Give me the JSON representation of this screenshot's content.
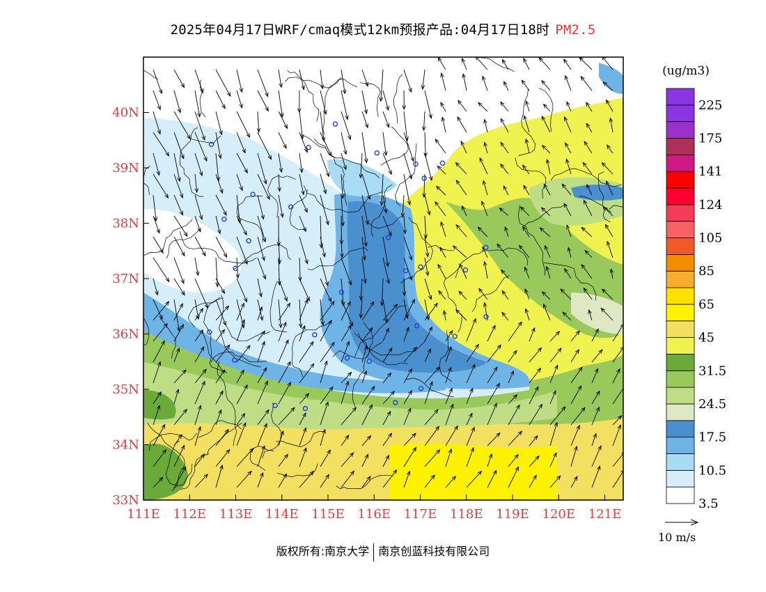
{
  "title": {
    "main": "2025年04月17日WRF/cmaq模式12km预报产品:04月17日18时",
    "pollutant": "PM2.5"
  },
  "colorbar": {
    "unit": "(ug/m3)",
    "levels": [
      {
        "color": "#ffffff",
        "label": "3.5"
      },
      {
        "color": "#d6eefa",
        "label": ""
      },
      {
        "color": "#a8dcf5",
        "label": "10.5"
      },
      {
        "color": "#6fb4e6",
        "label": ""
      },
      {
        "color": "#4a90cf",
        "label": "17.5"
      },
      {
        "color": "#dfe8c4",
        "label": ""
      },
      {
        "color": "#bedd85",
        "label": "24.5"
      },
      {
        "color": "#98c95a",
        "label": ""
      },
      {
        "color": "#6aaa38",
        "label": "31.5"
      },
      {
        "color": "#f0f250",
        "label": ""
      },
      {
        "color": "#f3df60",
        "label": "45"
      },
      {
        "color": "#fff200",
        "label": ""
      },
      {
        "color": "#ffe100",
        "label": "65"
      },
      {
        "color": "#f7ad2e",
        "label": ""
      },
      {
        "color": "#f58c00",
        "label": "85"
      },
      {
        "color": "#ee5a2a",
        "label": ""
      },
      {
        "color": "#f96264",
        "label": "105"
      },
      {
        "color": "#f43b59",
        "label": ""
      },
      {
        "color": "#ff0033",
        "label": "124"
      },
      {
        "color": "#ff0000",
        "label": ""
      },
      {
        "color": "#cf1a83",
        "label": "141"
      },
      {
        "color": "#ad3058",
        "label": ""
      },
      {
        "color": "#9b31c8",
        "label": "175"
      },
      {
        "color": "#8a34e2",
        "label": ""
      },
      {
        "color": "#8a34e2",
        "label": "225"
      }
    ]
  },
  "map": {
    "x_ticks": [
      "111E",
      "112E",
      "113E",
      "114E",
      "115E",
      "116E",
      "117E",
      "118E",
      "119E",
      "120E",
      "121E"
    ],
    "y_ticks": [
      "33N",
      "34N",
      "35N",
      "36N",
      "37N",
      "38N",
      "39N",
      "40N"
    ],
    "lon_range": [
      111,
      121.4
    ],
    "lat_range": [
      33,
      41
    ],
    "axis_label_color": "#e8383d"
  },
  "wind_legend": {
    "label": "10  m/s"
  },
  "footer": {
    "owner": "版权所有:南京大学",
    "company": "南京创蓝科技有限公司"
  }
}
